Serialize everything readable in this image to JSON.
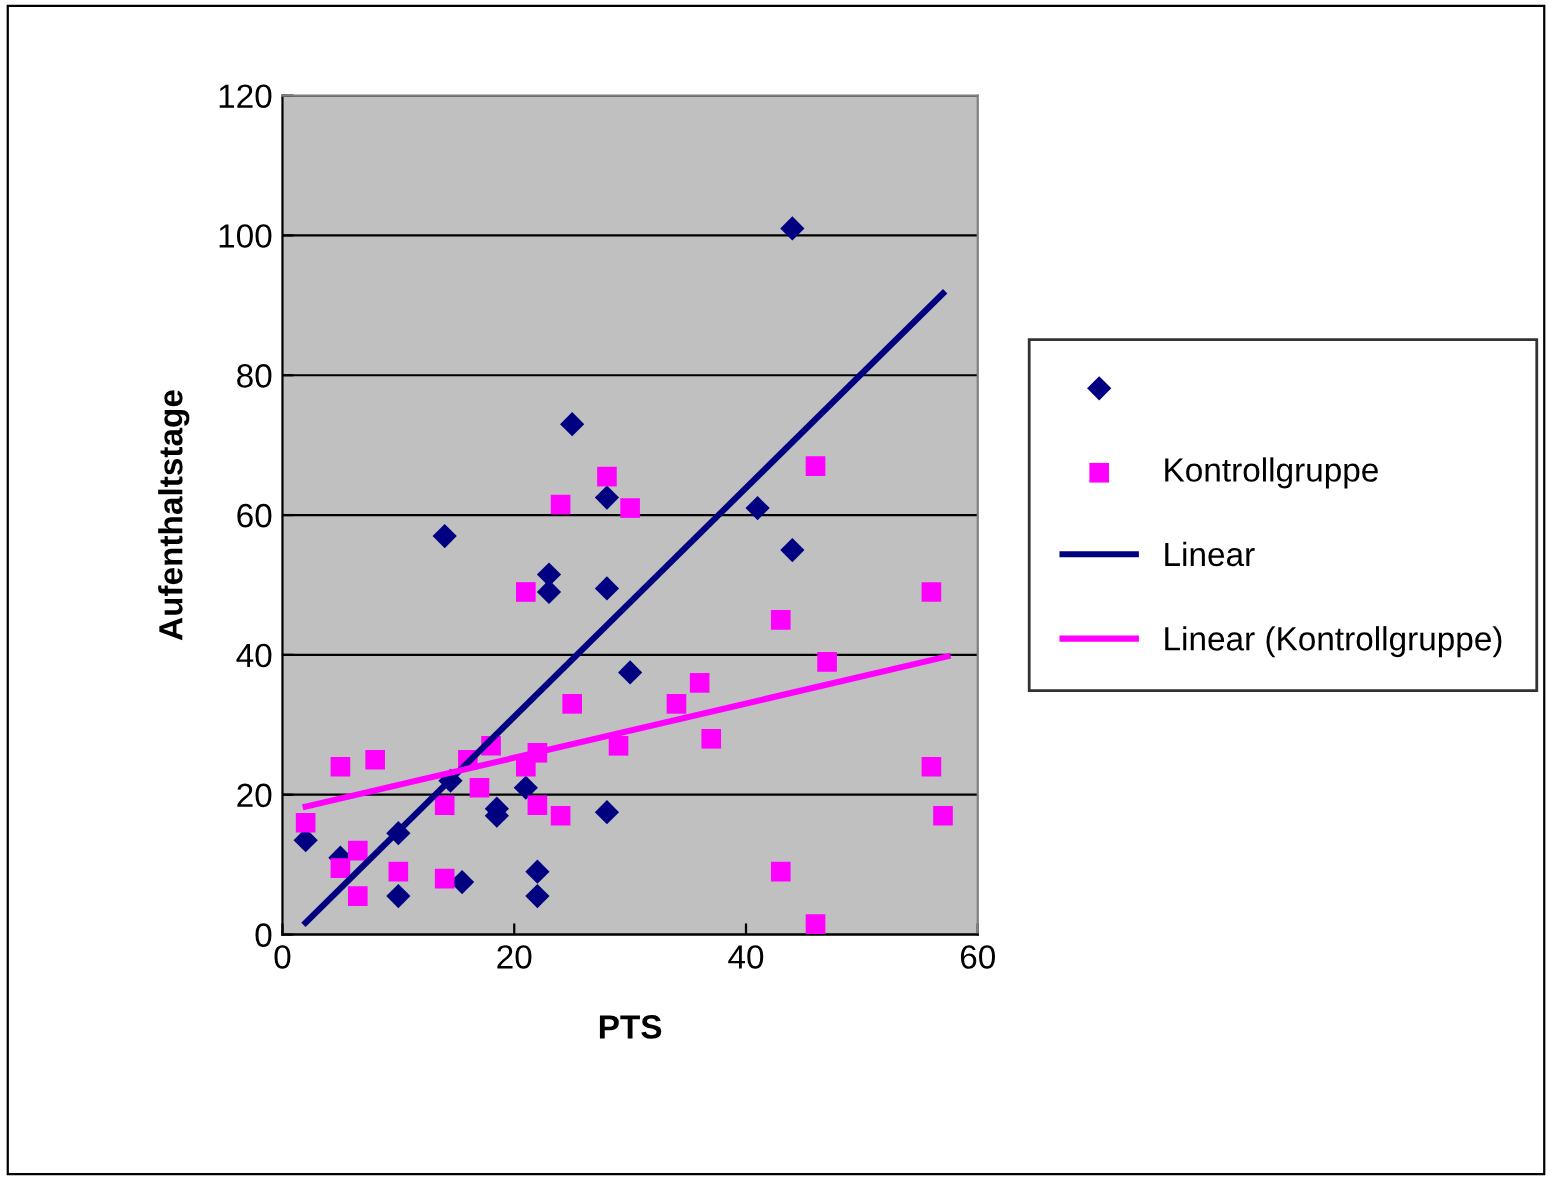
{
  "chart_data": {
    "type": "scatter",
    "xlabel": "PTS",
    "ylabel": "Aufenthaltstage",
    "xlim": [
      0,
      60
    ],
    "xticks": [
      0,
      20,
      40,
      60
    ],
    "ylim": [
      0,
      120
    ],
    "yticks": [
      0,
      20,
      40,
      60,
      80,
      100,
      120
    ],
    "grid": "y",
    "legend": "right",
    "series": [
      {
        "marker": "diamond",
        "color": "#000080",
        "x": [
          2,
          5,
          10,
          10,
          14,
          14.5,
          15.5,
          18.5,
          18.5,
          21,
          22,
          22,
          23,
          23,
          25,
          28,
          28,
          28,
          30,
          41,
          44,
          44
        ],
        "values": [
          13.5,
          11,
          14.5,
          5.5,
          57,
          22,
          7.5,
          18,
          17,
          21,
          9,
          5.5,
          51.5,
          49,
          73,
          62.5,
          49.5,
          17.5,
          37.5,
          61,
          101,
          55
        ]
      },
      {
        "name": "Kontrollgruppe",
        "marker": "square",
        "color": "#ff00ff",
        "x": [
          2,
          5,
          5,
          6.5,
          6.5,
          8,
          10,
          14,
          14,
          16,
          17,
          18,
          21,
          21,
          22,
          22,
          24,
          24,
          25,
          28,
          30,
          29,
          34,
          36,
          37,
          43,
          43,
          46,
          46,
          47,
          56,
          56,
          57
        ],
        "values": [
          16,
          24,
          9.5,
          12,
          5.5,
          25,
          9,
          18.5,
          8,
          25,
          21,
          27,
          49,
          24,
          26,
          18.5,
          17,
          61.5,
          33,
          65.5,
          61,
          27,
          33,
          36,
          28,
          45,
          9,
          67,
          1.5,
          39,
          49,
          24,
          17
        ]
      },
      {
        "type": "line",
        "name": "Linear",
        "color": "#000080",
        "line_style": "solid",
        "marker": "none",
        "x": [
          2,
          57
        ],
        "values": [
          1.7,
          91.7
        ]
      },
      {
        "type": "line",
        "name": "Linear (Kontrollgruppe)",
        "color": "#ff00ff",
        "line_style": "solid",
        "marker": "none",
        "x": [
          2,
          57.4
        ],
        "values": [
          18.3,
          39.8
        ]
      }
    ]
  }
}
